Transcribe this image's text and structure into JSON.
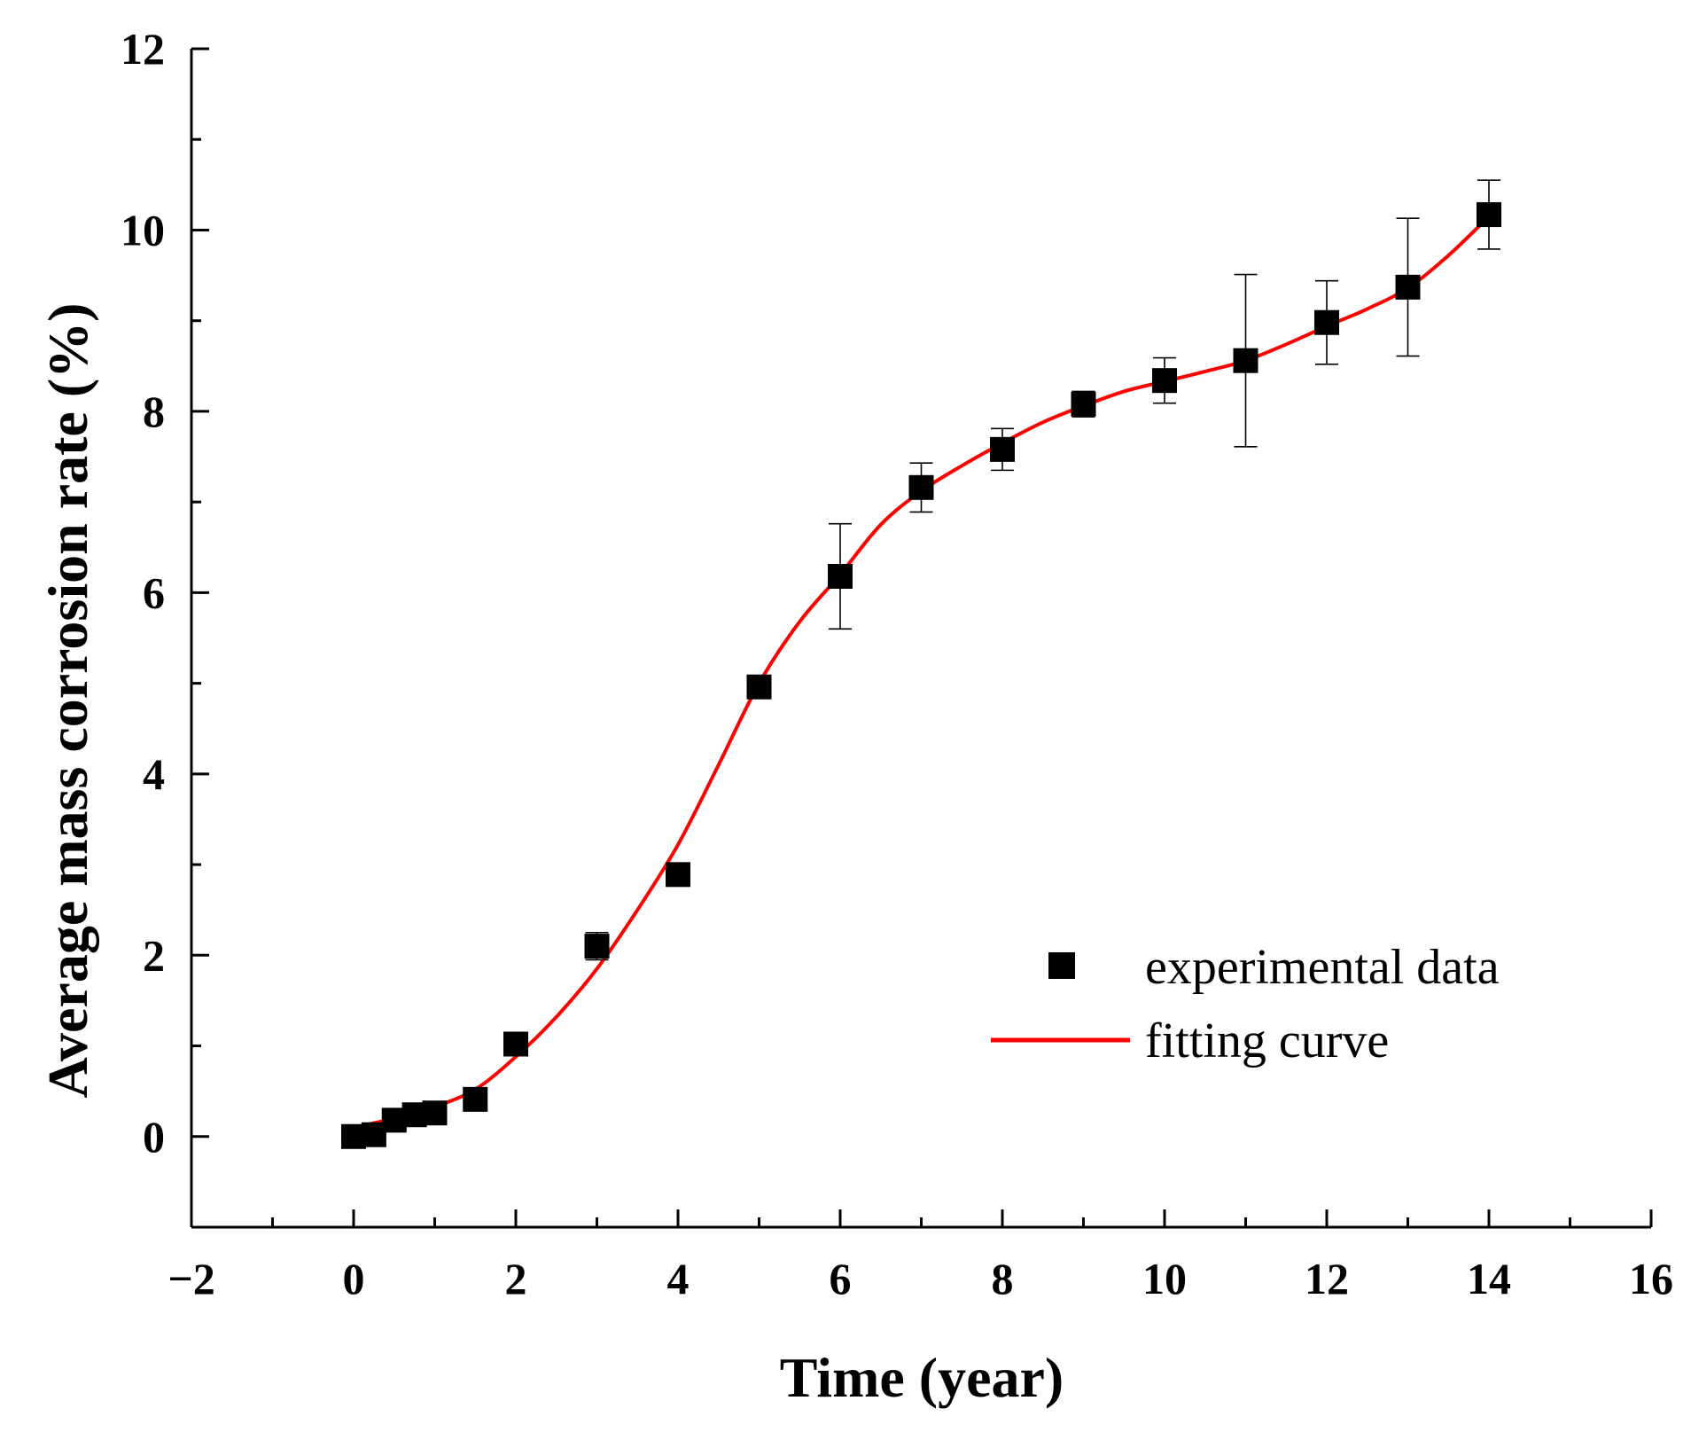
{
  "chart_data": {
    "type": "scatter",
    "title": "",
    "xlabel": "Time (year)",
    "ylabel": "Average mass corrosion rate (%)",
    "xlim": [
      -2,
      16
    ],
    "ylim": [
      -1,
      12
    ],
    "x_ticks": [
      -2,
      0,
      2,
      4,
      6,
      8,
      10,
      12,
      14,
      16
    ],
    "x_tick_labels": [
      "−2",
      "0",
      "2",
      "4",
      "6",
      "8",
      "10",
      "12",
      "14",
      "16"
    ],
    "y_ticks": [
      0,
      2,
      4,
      6,
      8,
      10,
      12
    ],
    "y_tick_labels": [
      "0",
      "2",
      "4",
      "6",
      "8",
      "10",
      "12"
    ],
    "grid": false,
    "legend_position": "bottom-right",
    "series": [
      {
        "name": "experimental data",
        "kind": "scatter",
        "marker": "square",
        "color": "#000000",
        "x": [
          0,
          0.25,
          0.5,
          0.75,
          1,
          1.5,
          2,
          3,
          4,
          5,
          6,
          7,
          8,
          9,
          10,
          11,
          12,
          13,
          14
        ],
        "y": [
          0.0,
          0.02,
          0.18,
          0.24,
          0.26,
          0.41,
          1.02,
          2.1,
          2.89,
          4.96,
          6.18,
          7.16,
          7.58,
          8.08,
          8.34,
          8.56,
          8.98,
          9.37,
          10.17
        ],
        "error": [
          0,
          0,
          0,
          0,
          0,
          0,
          0.08,
          0.15,
          0.05,
          0,
          0.58,
          0.27,
          0.23,
          0.14,
          0.25,
          0.95,
          0.46,
          0.76,
          0.38
        ]
      },
      {
        "name": "fitting curve",
        "kind": "line",
        "color": "#ff0000",
        "x": [
          0,
          0.5,
          1,
          1.5,
          2,
          2.5,
          3,
          3.5,
          4,
          4.5,
          5,
          5.5,
          6,
          6.5,
          7,
          7.5,
          8,
          8.5,
          9,
          9.5,
          10,
          10.5,
          11,
          11.5,
          12,
          12.5,
          13,
          13.5,
          14
        ],
        "y": [
          0.1,
          0.2,
          0.33,
          0.52,
          0.88,
          1.32,
          1.85,
          2.5,
          3.22,
          4.1,
          5.0,
          5.68,
          6.2,
          6.75,
          7.12,
          7.4,
          7.65,
          7.88,
          8.06,
          8.22,
          8.33,
          8.44,
          8.56,
          8.74,
          8.94,
          9.13,
          9.36,
          9.72,
          10.15
        ]
      }
    ]
  }
}
